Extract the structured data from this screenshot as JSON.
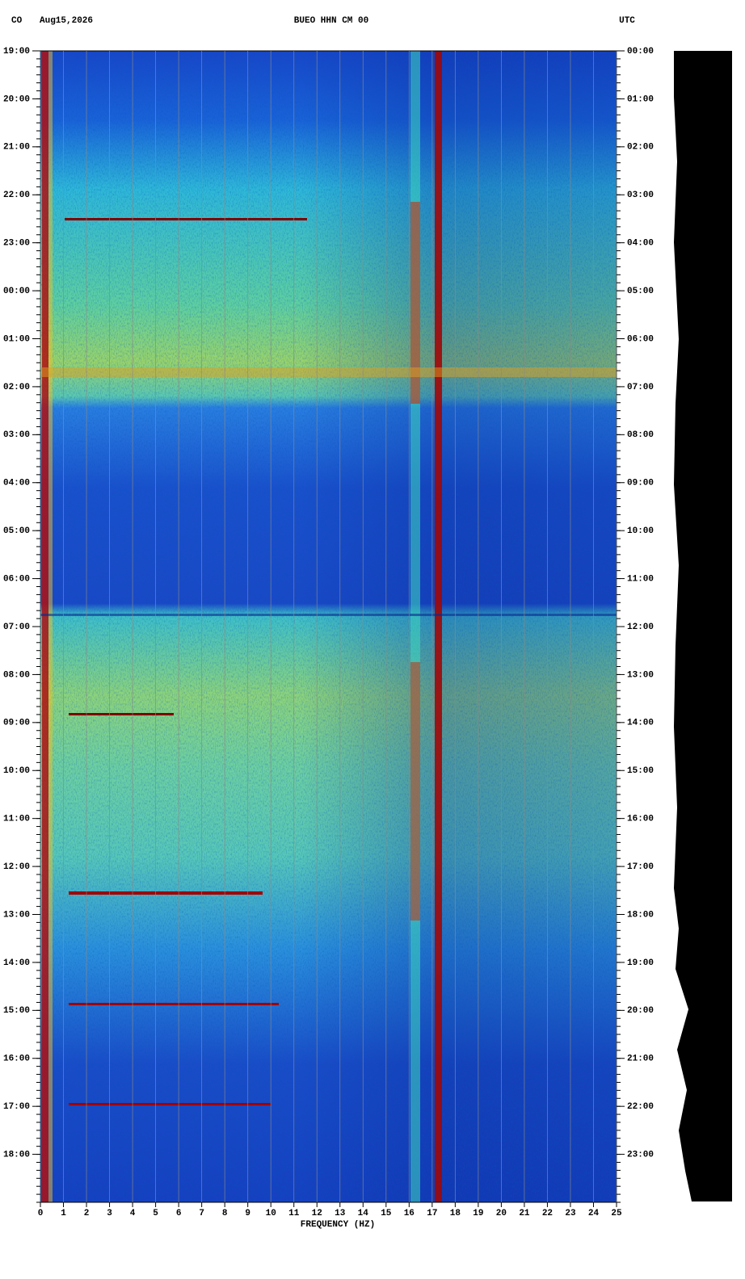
{
  "chart_data": {
    "type": "spectrogram",
    "title": "BUEO HHN CM 00",
    "network": "CO",
    "date": "Aug15,2026",
    "timezone": "UTC",
    "x_label": "FREQUENCY (HZ)",
    "xlim": [
      0,
      25
    ],
    "xticks": [
      0,
      1,
      2,
      3,
      4,
      5,
      6,
      7,
      8,
      9,
      10,
      11,
      12,
      13,
      14,
      15,
      16,
      17,
      18,
      19,
      20,
      21,
      22,
      23,
      24,
      25
    ],
    "ylim": [
      0,
      24
    ],
    "yticks": [
      {
        "value": 0,
        "label": "19:00"
      },
      {
        "value": 1,
        "label": "20:00"
      },
      {
        "value": 2,
        "label": "21:00"
      },
      {
        "value": 3,
        "label": "22:00"
      },
      {
        "value": 4,
        "label": "23:00"
      },
      {
        "value": 5,
        "label": "00:00"
      },
      {
        "value": 6,
        "label": "01:00"
      },
      {
        "value": 7,
        "label": "02:00"
      },
      {
        "value": 8,
        "label": "03:00"
      },
      {
        "value": 9,
        "label": "04:00"
      },
      {
        "value": 10,
        "label": "05:00"
      },
      {
        "value": 11,
        "label": "06:00"
      },
      {
        "value": 12,
        "label": "07:00"
      },
      {
        "value": 13,
        "label": "08:00"
      },
      {
        "value": 14,
        "label": "09:00"
      },
      {
        "value": 15,
        "label": "10:00"
      },
      {
        "value": 16,
        "label": "11:00"
      },
      {
        "value": 17,
        "label": "12:00"
      },
      {
        "value": 18,
        "label": "13:00"
      },
      {
        "value": 19,
        "label": "14:00"
      },
      {
        "value": 20,
        "label": "15:00"
      },
      {
        "value": 21,
        "label": "16:00"
      },
      {
        "value": 22,
        "label": "17:00"
      },
      {
        "value": 23,
        "label": "18:00"
      }
    ],
    "y2lim": [
      0,
      24
    ],
    "y2ticks": [
      {
        "value": 0,
        "label": "00:00"
      },
      {
        "value": 1,
        "label": "01:00"
      },
      {
        "value": 2,
        "label": "02:00"
      },
      {
        "value": 3,
        "label": "03:00"
      },
      {
        "value": 4,
        "label": "04:00"
      },
      {
        "value": 5,
        "label": "05:00"
      },
      {
        "value": 6,
        "label": "06:00"
      },
      {
        "value": 7,
        "label": "07:00"
      },
      {
        "value": 8,
        "label": "08:00"
      },
      {
        "value": 9,
        "label": "09:00"
      },
      {
        "value": 10,
        "label": "10:00"
      },
      {
        "value": 11,
        "label": "11:00"
      },
      {
        "value": 12,
        "label": "12:00"
      },
      {
        "value": 13,
        "label": "13:00"
      },
      {
        "value": 14,
        "label": "14:00"
      },
      {
        "value": 15,
        "label": "15:00"
      },
      {
        "value": 16,
        "label": "16:00"
      },
      {
        "value": 17,
        "label": "17:00"
      },
      {
        "value": 18,
        "label": "18:00"
      },
      {
        "value": 19,
        "label": "19:00"
      },
      {
        "value": 20,
        "label": "20:00"
      },
      {
        "value": 21,
        "label": "21:00"
      },
      {
        "value": 22,
        "label": "22:00"
      },
      {
        "value": 23,
        "label": "23:00"
      }
    ],
    "grid": true
  }
}
